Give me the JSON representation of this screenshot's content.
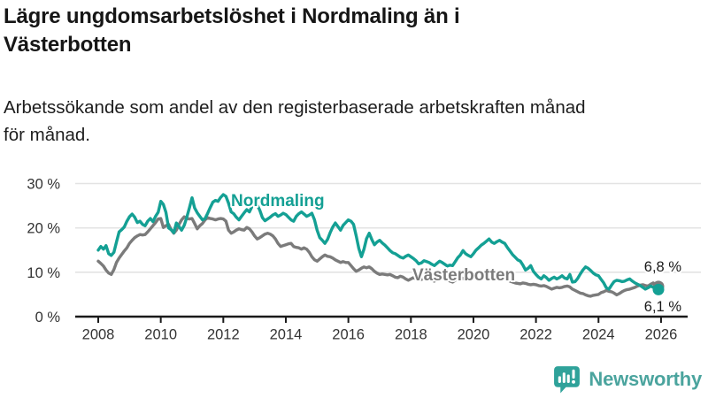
{
  "header": {
    "title_lines": [
      "Lägre ungdomsarbetslöshet i Nordmaling än i",
      "Västerbotten"
    ],
    "subtitle_lines": [
      "Arbetssökande som andel av den registerbaserade arbetskraften månad",
      "för månad."
    ]
  },
  "branding": {
    "logo_text": "Newsworthy",
    "logo_icon": "speech-bubble-bar-chart-icon",
    "icon_color": "#2fa29a",
    "text_color": "#4ba49e"
  },
  "chart_data": {
    "type": "line",
    "x_unit": "month",
    "x_start": "2008-01",
    "x_end": "2025-12",
    "x_tick_years": [
      2008,
      2010,
      2012,
      2014,
      2016,
      2018,
      2020,
      2022,
      2024,
      2026
    ],
    "y_ticks": [
      0,
      10,
      20,
      30
    ],
    "y_tick_suffix": " %",
    "ylim": [
      0,
      30
    ],
    "xlim": [
      2008,
      2026.3
    ],
    "grid_y": [
      10,
      20,
      30
    ],
    "legend": "inline-labels",
    "colors": {
      "axis": "#1a1a1a",
      "tick_label": "#333333",
      "gridline": "#e3e3e3"
    },
    "series": [
      {
        "name": "Nordmaling",
        "color": "#14a094",
        "end_label": "6,1 %",
        "last_value": 6.1,
        "values": [
          15.0,
          15.8,
          15.2,
          16.0,
          14.2,
          13.8,
          14.5,
          16.8,
          19.1,
          19.6,
          20.2,
          21.5,
          22.5,
          23.1,
          22.4,
          21.2,
          21.5,
          20.8,
          20.5,
          21.5,
          22.1,
          21.4,
          22.6,
          23.5,
          26.0,
          25.3,
          23.5,
          20.0,
          19.6,
          18.9,
          21.1,
          20.3,
          19.5,
          20.6,
          22.4,
          24.5,
          26.8,
          24.5,
          23.4,
          22.6,
          21.8,
          22.1,
          23.3,
          24.6,
          25.8,
          26.2,
          26.0,
          26.9,
          27.5,
          27.1,
          25.6,
          23.6,
          23.2,
          22.4,
          21.8,
          22.6,
          23.4,
          24.1,
          23.6,
          24.8,
          26.1,
          25.2,
          24.0,
          22.3,
          21.6,
          22.0,
          22.4,
          22.9,
          23.2,
          22.6,
          22.9,
          23.3,
          23.0,
          22.4,
          21.8,
          21.5,
          22.6,
          23.2,
          23.6,
          23.1,
          22.6,
          22.9,
          23.3,
          21.8,
          19.5,
          17.8,
          17.2,
          16.5,
          17.4,
          18.9,
          20.2,
          21.1,
          20.3,
          19.5,
          20.6,
          21.2,
          21.8,
          21.5,
          20.8,
          18.2,
          15.4,
          13.5,
          15.2,
          17.6,
          18.8,
          17.4,
          16.2,
          16.8,
          17.2,
          16.6,
          16.1,
          15.5,
          14.9,
          14.4,
          14.2,
          13.8,
          13.4,
          13.2,
          13.6,
          13.9,
          13.5,
          13.1,
          12.6,
          11.9,
          12.1,
          12.6,
          12.4,
          12.2,
          11.8,
          11.5,
          12.0,
          12.5,
          12.2,
          11.8,
          11.4,
          11.6,
          11.5,
          12.4,
          13.3,
          13.9,
          14.9,
          14.2,
          13.8,
          13.5,
          14.2,
          15.0,
          15.5,
          16.1,
          16.5,
          17.0,
          17.5,
          16.8,
          16.5,
          16.9,
          17.2,
          16.8,
          16.5,
          15.6,
          14.8,
          14.0,
          13.4,
          12.8,
          12.5,
          11.6,
          10.5,
          10.9,
          11.5,
          10.2,
          9.5,
          8.9,
          8.5,
          9.2,
          8.8,
          8.2,
          8.6,
          8.9,
          8.5,
          8.8,
          9.2,
          8.7,
          8.5,
          9.5,
          7.8,
          7.9,
          8.6,
          9.6,
          10.5,
          11.2,
          10.9,
          10.4,
          9.8,
          9.4,
          9.2,
          8.4,
          7.6,
          6.5,
          6.2,
          7.1,
          7.9,
          8.2,
          8.1,
          7.9,
          8.0,
          8.3,
          8.5,
          8.0,
          7.6,
          7.3,
          7.0,
          6.6,
          6.2,
          6.5,
          6.9,
          6.6,
          6.4,
          6.1
        ]
      },
      {
        "name": "Västerbotten",
        "color": "#7b7b7b",
        "end_label": "6,8 %",
        "last_value": 6.8,
        "values": [
          12.5,
          12.0,
          11.4,
          10.5,
          9.8,
          9.5,
          10.6,
          12.2,
          13.2,
          14.0,
          14.8,
          15.5,
          16.5,
          17.2,
          17.8,
          18.2,
          18.5,
          18.4,
          18.5,
          19.1,
          19.8,
          20.5,
          21.2,
          22.0,
          22.1,
          20.1,
          20.5,
          20.8,
          19.6,
          18.8,
          19.5,
          20.8,
          21.8,
          22.5,
          22.1,
          22.0,
          22.1,
          21.0,
          19.8,
          20.5,
          21.0,
          21.8,
          22.3,
          22.1,
          22.0,
          21.8,
          22.0,
          22.1,
          22.0,
          21.5,
          19.5,
          18.8,
          19.1,
          19.5,
          19.8,
          19.6,
          19.5,
          20.1,
          19.8,
          19.1,
          18.2,
          17.5,
          17.8,
          18.2,
          18.6,
          18.8,
          18.6,
          18.2,
          17.5,
          16.5,
          15.8,
          16.0,
          16.2,
          16.4,
          16.5,
          15.8,
          15.6,
          15.5,
          15.2,
          15.5,
          15.2,
          14.5,
          13.5,
          12.8,
          12.5,
          13.0,
          13.5,
          13.9,
          13.6,
          13.5,
          13.2,
          12.8,
          12.5,
          12.2,
          12.4,
          12.2,
          12.2,
          11.5,
          10.8,
          10.2,
          10.5,
          10.9,
          11.2,
          11.0,
          11.2,
          10.8,
          10.2,
          9.8,
          9.5,
          9.6,
          9.5,
          9.4,
          9.5,
          9.2,
          8.9,
          8.8,
          9.1,
          8.9,
          8.5,
          8.2,
          8.5,
          8.8,
          8.5,
          8.2,
          8.4,
          8.6,
          8.8,
          8.5,
          8.2,
          8.0,
          8.3,
          8.6,
          8.8,
          8.6,
          8.3,
          8.0,
          7.8,
          8.2,
          8.6,
          8.9,
          8.6,
          8.3,
          8.5,
          8.8,
          9.2,
          9.5,
          9.9,
          10.2,
          10.0,
          9.8,
          9.5,
          9.3,
          9.2,
          9.0,
          8.8,
          8.6,
          8.5,
          8.3,
          8.0,
          7.8,
          7.6,
          7.5,
          7.4,
          7.6,
          7.5,
          7.3,
          7.2,
          7.3,
          7.2,
          7.0,
          6.9,
          7.0,
          6.8,
          6.5,
          6.2,
          6.4,
          6.6,
          6.5,
          6.6,
          6.8,
          6.9,
          6.7,
          6.2,
          5.9,
          5.6,
          5.3,
          5.2,
          4.9,
          4.7,
          4.6,
          4.8,
          4.9,
          5.0,
          5.4,
          5.6,
          5.9,
          5.7,
          5.6,
          5.3,
          4.9,
          5.2,
          5.6,
          5.9,
          6.1,
          6.2,
          6.4,
          6.6,
          6.9,
          7.1,
          7.2,
          7.0,
          6.9,
          7.3,
          7.6,
          7.2,
          6.8
        ]
      }
    ],
    "layout_hints": {
      "legend_position": "inline",
      "series_label_pos": {
        "Nordmaling": [
          261,
          233
        ],
        "Västerbotten": [
          466,
          317
        ]
      },
      "end_label_pos": {
        "Nordmaling": [
          770,
          352
        ],
        "Västerbotten": [
          770,
          307
        ]
      }
    }
  }
}
